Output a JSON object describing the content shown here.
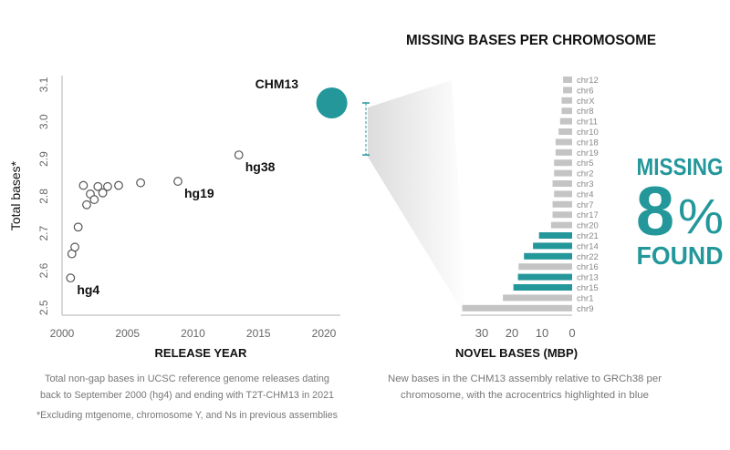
{
  "colors": {
    "accent": "#23979a",
    "bar_gray": "#c4c4c4",
    "point_stroke": "#555555"
  },
  "chart_data": [
    {
      "type": "scatter",
      "title": "",
      "xlabel": "RELEASE YEAR",
      "ylabel": "Total bases*",
      "xlim": [
        2000,
        2022
      ],
      "ylim": [
        2.5,
        3.1
      ],
      "xticks": [
        "2000",
        "2005",
        "2010",
        "2015",
        "2020"
      ],
      "yticks": [
        "2.5",
        "2.6",
        "2.7",
        "2.8",
        "2.9",
        "3.0",
        "3.1"
      ],
      "points": [
        {
          "x": 2000.65,
          "y": 2.58,
          "label": "hg4"
        },
        {
          "x": 2000.75,
          "y": 2.645
        },
        {
          "x": 2000.98,
          "y": 2.663
        },
        {
          "x": 2001.23,
          "y": 2.717
        },
        {
          "x": 2001.63,
          "y": 2.829
        },
        {
          "x": 2001.88,
          "y": 2.777
        },
        {
          "x": 2002.16,
          "y": 2.806
        },
        {
          "x": 2002.46,
          "y": 2.791
        },
        {
          "x": 2002.74,
          "y": 2.826
        },
        {
          "x": 2003.11,
          "y": 2.809
        },
        {
          "x": 2003.48,
          "y": 2.826
        },
        {
          "x": 2004.32,
          "y": 2.829
        },
        {
          "x": 2006.0,
          "y": 2.836
        },
        {
          "x": 2008.85,
          "y": 2.84,
          "label": "hg19"
        },
        {
          "x": 2013.5,
          "y": 2.911,
          "label": "hg38"
        }
      ],
      "highlight": {
        "x": 2020.6,
        "y": 3.051,
        "label": "CHM13"
      },
      "bracket": {
        "from": 2.911,
        "to": 3.051
      }
    },
    {
      "type": "bar",
      "orientation": "horizontal-reversed",
      "title": "MISSING BASES PER CHROMOSOME",
      "xlabel": "NOVEL BASES (MBP)",
      "xlim": [
        0,
        37
      ],
      "xticks": [
        "30",
        "20",
        "10",
        "0"
      ],
      "categories": [
        "chr12",
        "chr6",
        "chrX",
        "chr8",
        "chr11",
        "chr10",
        "chr18",
        "chr19",
        "chr5",
        "chr2",
        "chr3",
        "chr4",
        "chr7",
        "chr17",
        "chr20",
        "chr21",
        "chr14",
        "chr22",
        "chr16",
        "chr13",
        "chr15",
        "chr1",
        "chr9"
      ],
      "values": [
        3,
        3,
        3.5,
        3.5,
        4,
        4.5,
        5.5,
        5.5,
        6,
        6,
        6.5,
        6,
        6.5,
        6.5,
        7,
        11,
        13,
        16,
        17.8,
        18,
        19.5,
        23,
        36.5
      ],
      "highlighted": [
        "chr21",
        "chr14",
        "chr22",
        "chr13",
        "chr15"
      ]
    }
  ],
  "callout": {
    "line1": "MISSING",
    "number": "8",
    "percent": "%",
    "line3": "FOUND"
  },
  "captions": {
    "left": [
      "Total non-gap bases in UCSC reference genome releases dating",
      "back to September 2000 (hg4) and ending with T2T-CHM13 in 2021"
    ],
    "footnote": "*Excluding mtgenome, chromosome Y, and Ns in previous assemblies",
    "right": [
      "New bases in the CHM13 assembly relative to GRCh38 per",
      "chromosome, with the acrocentrics highlighted in blue"
    ]
  }
}
